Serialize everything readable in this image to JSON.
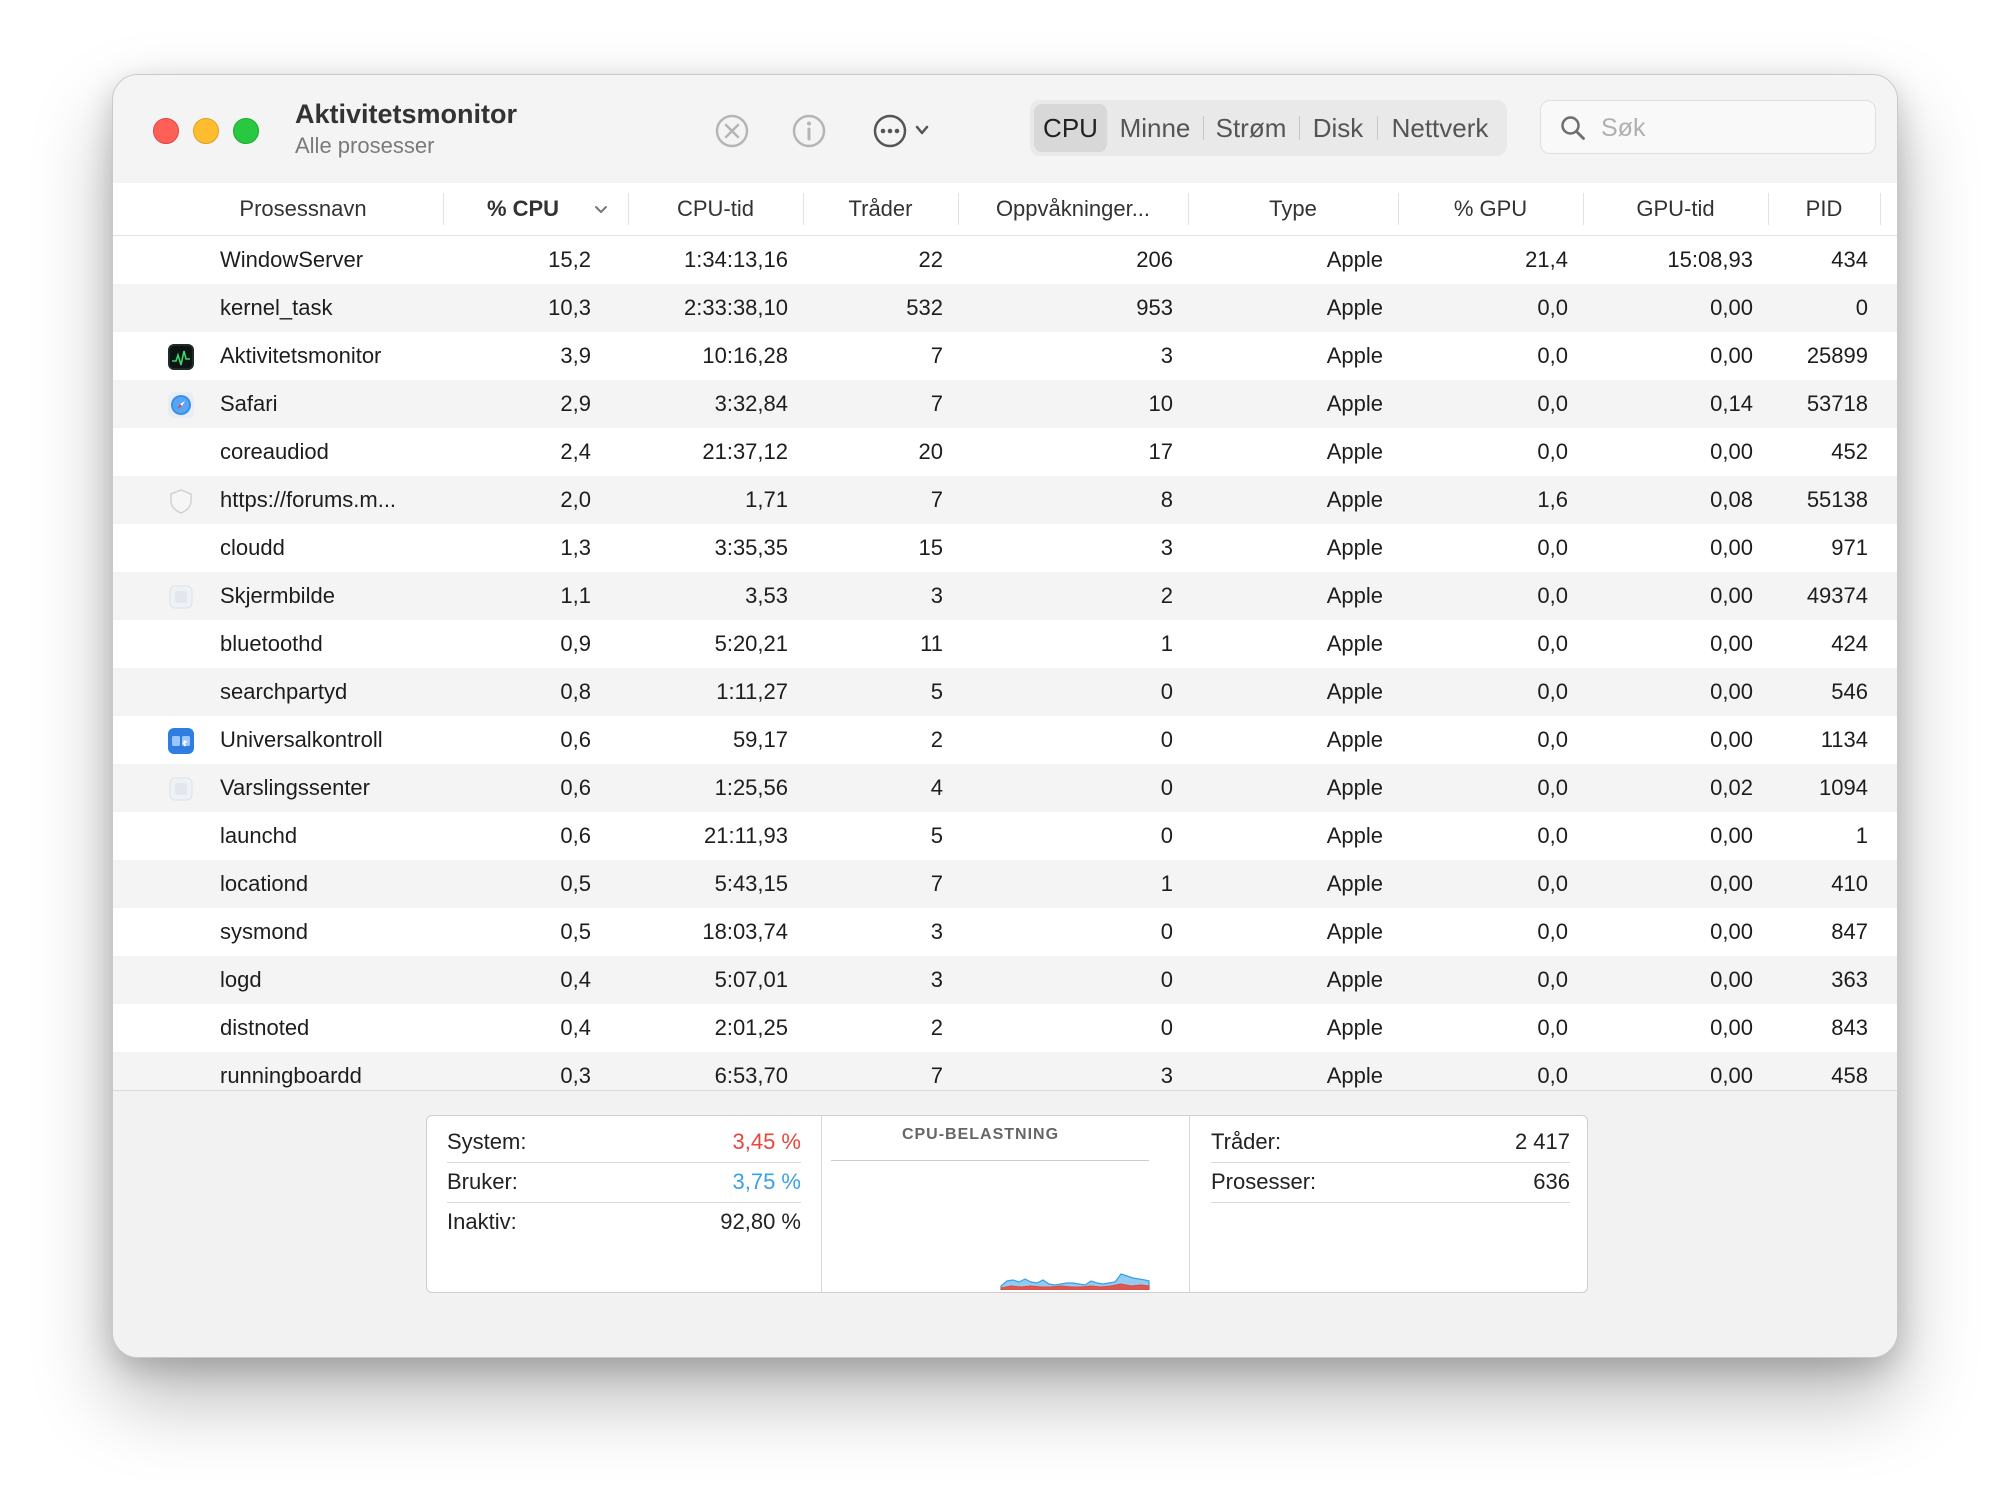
{
  "window": {
    "title": "Aktivitetsmonitor",
    "subtitle": "Alle prosesser"
  },
  "toolbar": {
    "stop_icon": "stop-process-icon",
    "info_icon": "info-icon",
    "more_icon": "more-options-icon",
    "tabs": [
      {
        "label": "CPU",
        "active": true
      },
      {
        "label": "Minne",
        "active": false
      },
      {
        "label": "Strøm",
        "active": false
      },
      {
        "label": "Disk",
        "active": false
      },
      {
        "label": "Nettverk",
        "active": false
      }
    ],
    "search_placeholder": "Søk"
  },
  "table": {
    "columns": [
      "Prosessnavn",
      "% CPU",
      "CPU-tid",
      "Tråder",
      "Oppvåkninger...",
      "Type",
      "% GPU",
      "GPU-tid",
      "PID"
    ],
    "sort_column": "% CPU",
    "rows": [
      {
        "icon": "",
        "name": "WindowServer",
        "cpu": "15,2",
        "cpu_time": "1:34:13,16",
        "threads": "22",
        "wakeups": "206",
        "type": "Apple",
        "gpu": "21,4",
        "gpu_time": "15:08,93",
        "pid": "434"
      },
      {
        "icon": "",
        "name": "kernel_task",
        "cpu": "10,3",
        "cpu_time": "2:33:38,10",
        "threads": "532",
        "wakeups": "953",
        "type": "Apple",
        "gpu": "0,0",
        "gpu_time": "0,00",
        "pid": "0"
      },
      {
        "icon": "activity-monitor-icon",
        "name": "Aktivitetsmonitor",
        "cpu": "3,9",
        "cpu_time": "10:16,28",
        "threads": "7",
        "wakeups": "3",
        "type": "Apple",
        "gpu": "0,0",
        "gpu_time": "0,00",
        "pid": "25899"
      },
      {
        "icon": "safari-icon",
        "name": "Safari",
        "cpu": "2,9",
        "cpu_time": "3:32,84",
        "threads": "7",
        "wakeups": "10",
        "type": "Apple",
        "gpu": "0,0",
        "gpu_time": "0,14",
        "pid": "53718"
      },
      {
        "icon": "",
        "name": "coreaudiod",
        "cpu": "2,4",
        "cpu_time": "21:37,12",
        "threads": "20",
        "wakeups": "17",
        "type": "Apple",
        "gpu": "0,0",
        "gpu_time": "0,00",
        "pid": "452"
      },
      {
        "icon": "shield-icon",
        "name": "https://forums.m...",
        "cpu": "2,0",
        "cpu_time": "1,71",
        "threads": "7",
        "wakeups": "8",
        "type": "Apple",
        "gpu": "1,6",
        "gpu_time": "0,08",
        "pid": "55138"
      },
      {
        "icon": "",
        "name": "cloudd",
        "cpu": "1,3",
        "cpu_time": "3:35,35",
        "threads": "15",
        "wakeups": "3",
        "type": "Apple",
        "gpu": "0,0",
        "gpu_time": "0,00",
        "pid": "971"
      },
      {
        "icon": "generic-app-icon",
        "name": "Skjermbilde",
        "cpu": "1,1",
        "cpu_time": "3,53",
        "threads": "3",
        "wakeups": "2",
        "type": "Apple",
        "gpu": "0,0",
        "gpu_time": "0,00",
        "pid": "49374"
      },
      {
        "icon": "",
        "name": "bluetoothd",
        "cpu": "0,9",
        "cpu_time": "5:20,21",
        "threads": "11",
        "wakeups": "1",
        "type": "Apple",
        "gpu": "0,0",
        "gpu_time": "0,00",
        "pid": "424"
      },
      {
        "icon": "",
        "name": "searchpartyd",
        "cpu": "0,8",
        "cpu_time": "1:11,27",
        "threads": "5",
        "wakeups": "0",
        "type": "Apple",
        "gpu": "0,0",
        "gpu_time": "0,00",
        "pid": "546"
      },
      {
        "icon": "universal-control-icon",
        "name": "Universalkontroll",
        "cpu": "0,6",
        "cpu_time": "59,17",
        "threads": "2",
        "wakeups": "0",
        "type": "Apple",
        "gpu": "0,0",
        "gpu_time": "0,00",
        "pid": "1134"
      },
      {
        "icon": "generic-app-icon",
        "name": "Varslingssenter",
        "cpu": "0,6",
        "cpu_time": "1:25,56",
        "threads": "4",
        "wakeups": "0",
        "type": "Apple",
        "gpu": "0,0",
        "gpu_time": "0,02",
        "pid": "1094"
      },
      {
        "icon": "",
        "name": "launchd",
        "cpu": "0,6",
        "cpu_time": "21:11,93",
        "threads": "5",
        "wakeups": "0",
        "type": "Apple",
        "gpu": "0,0",
        "gpu_time": "0,00",
        "pid": "1"
      },
      {
        "icon": "",
        "name": "locationd",
        "cpu": "0,5",
        "cpu_time": "5:43,15",
        "threads": "7",
        "wakeups": "1",
        "type": "Apple",
        "gpu": "0,0",
        "gpu_time": "0,00",
        "pid": "410"
      },
      {
        "icon": "",
        "name": "sysmond",
        "cpu": "0,5",
        "cpu_time": "18:03,74",
        "threads": "3",
        "wakeups": "0",
        "type": "Apple",
        "gpu": "0,0",
        "gpu_time": "0,00",
        "pid": "847"
      },
      {
        "icon": "",
        "name": "logd",
        "cpu": "0,4",
        "cpu_time": "5:07,01",
        "threads": "3",
        "wakeups": "0",
        "type": "Apple",
        "gpu": "0,0",
        "gpu_time": "0,00",
        "pid": "363"
      },
      {
        "icon": "",
        "name": "distnoted",
        "cpu": "0,4",
        "cpu_time": "2:01,25",
        "threads": "2",
        "wakeups": "0",
        "type": "Apple",
        "gpu": "0,0",
        "gpu_time": "0,00",
        "pid": "843"
      },
      {
        "icon": "",
        "name": "runningboardd",
        "cpu": "0,3",
        "cpu_time": "6:53,70",
        "threads": "7",
        "wakeups": "3",
        "type": "Apple",
        "gpu": "0,0",
        "gpu_time": "0,00",
        "pid": "458"
      }
    ]
  },
  "summary": {
    "system_label": "System:",
    "system_value": "3,45 %",
    "user_label": "Bruker:",
    "user_value": "3,75 %",
    "idle_label": "Inaktiv:",
    "idle_value": "92,80 %",
    "chart_title": "CPU-BELASTNING",
    "threads_label": "Tråder:",
    "threads_value": "2 417",
    "processes_label": "Prosesser:",
    "processes_value": "636"
  },
  "colors": {
    "system": "#e5473a",
    "user": "#3aa0e8"
  }
}
